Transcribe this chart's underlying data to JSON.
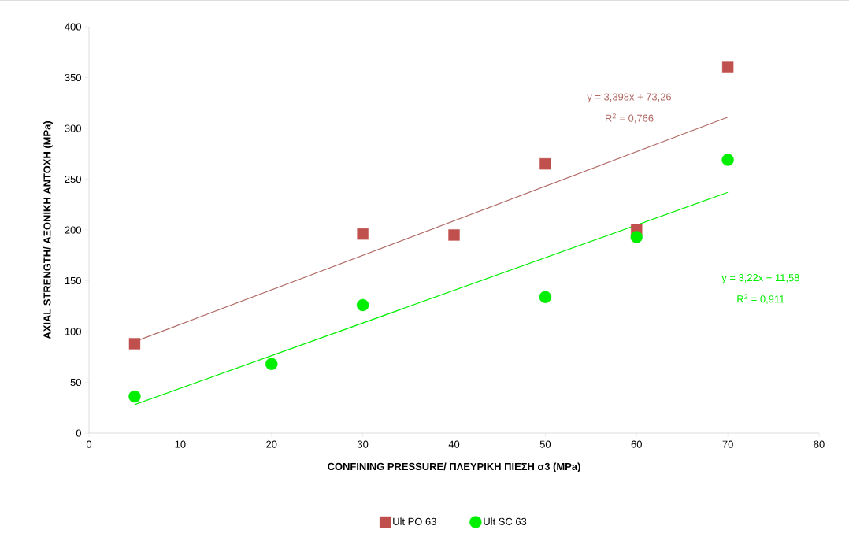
{
  "chart_data": {
    "type": "scatter",
    "xlabel": "CONFINING PRESSURE/ ΠΛΕΥΡΙΚΗ ΠΙΕΣΗ σ3 (MPa)",
    "ylabel": "AXIAL STRENGTH/ ΑΞΟΝΙΚΗ ΑΝΤΟΧΗ (MPa)",
    "xlim": [
      0,
      80
    ],
    "ylim": [
      0,
      400
    ],
    "xticks": [
      0,
      10,
      20,
      30,
      40,
      50,
      60,
      70,
      80
    ],
    "yticks": [
      0,
      50,
      100,
      150,
      200,
      250,
      300,
      350,
      400
    ],
    "grid": false,
    "legend": "bottom",
    "series": [
      {
        "name": "Ult PO 63",
        "marker": "square",
        "color": "#c0504d",
        "x": [
          5,
          30,
          40,
          50,
          60,
          70
        ],
        "values": [
          88,
          196,
          195,
          265,
          200,
          360
        ]
      },
      {
        "name": "Ult SC 63",
        "marker": "circle",
        "color": "#00ee00",
        "x": [
          5,
          20,
          30,
          50,
          60,
          70
        ],
        "values": [
          36,
          68,
          126,
          134,
          193,
          269
        ]
      },
      {
        "type": "line",
        "marker": "none",
        "color": "#b06a66",
        "x": [
          5,
          70
        ],
        "values": [
          90,
          311
        ]
      },
      {
        "type": "line",
        "marker": "none",
        "color": "#00ee00",
        "x": [
          5,
          70
        ],
        "values": [
          28,
          237
        ]
      }
    ],
    "annotations": [
      "y = 3,398x + 73,26",
      "R$^{2}$ = 0,766",
      "y = 3,22x + 11,58",
      "R$^{2}$ = 0,911"
    ]
  }
}
